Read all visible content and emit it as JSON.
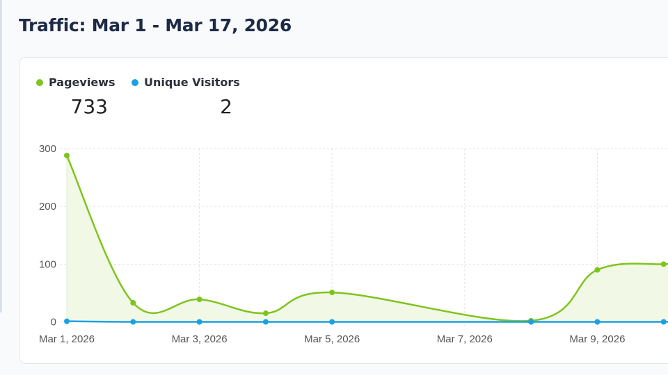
{
  "header": {
    "title": "Traffic: Mar 1 - Mar 17, 2026"
  },
  "summary": {
    "pageviews": {
      "label": "Pageviews",
      "value": "733",
      "color": "#7ec41c"
    },
    "visitors": {
      "label": "Unique Visitors",
      "value": "2",
      "color": "#1ba1e2"
    }
  },
  "chart_data": {
    "type": "area",
    "title": "Traffic: Mar 1 - Mar 17, 2026",
    "xlabel": "",
    "ylabel": "",
    "ylim": [
      0,
      300
    ],
    "yticks": [
      0,
      100,
      200,
      300
    ],
    "xtick_labels": [
      "Mar 1, 2026",
      "Mar 3, 2026",
      "Mar 5, 2026",
      "Mar 7, 2026",
      "Mar 9, 2026"
    ],
    "grid": true,
    "legend_position": "top-left",
    "x": [
      "Mar 1",
      "Mar 2",
      "Mar 3",
      "Mar 4",
      "Mar 5",
      "Mar 8",
      "Mar 9",
      "Mar 10"
    ],
    "series": [
      {
        "name": "Pageviews",
        "color": "#7ec41c",
        "fill": "#f1f8e6",
        "values": [
          288,
          33,
          39,
          15,
          51,
          2,
          90,
          100
        ]
      },
      {
        "name": "Unique Visitors",
        "color": "#1ba1e2",
        "values": [
          1,
          0,
          0,
          0,
          0,
          0,
          0,
          0
        ]
      }
    ]
  }
}
